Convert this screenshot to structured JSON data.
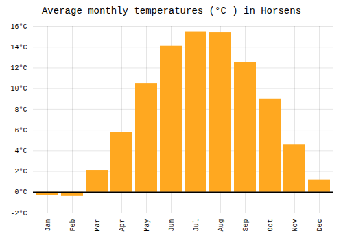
{
  "chart_data": {
    "type": "bar",
    "title": "Average monthly temperatures (°C ) in Horsens",
    "categories": [
      "Jan",
      "Feb",
      "Mar",
      "Apr",
      "May",
      "Jun",
      "Jul",
      "Aug",
      "Sep",
      "Oct",
      "Nov",
      "Dec"
    ],
    "values": [
      -0.3,
      -0.4,
      2.1,
      5.8,
      10.5,
      14.1,
      15.5,
      15.4,
      12.5,
      9.0,
      4.6,
      1.2
    ],
    "color": "#FFA820",
    "ylim": [
      -2,
      16
    ],
    "yticks": [
      {
        "value": -2,
        "label": "-2°C"
      },
      {
        "value": 0,
        "label": "0°C"
      },
      {
        "value": 2,
        "label": "2°C"
      },
      {
        "value": 4,
        "label": "4°C"
      },
      {
        "value": 6,
        "label": "6°C"
      },
      {
        "value": 8,
        "label": "8°C"
      },
      {
        "value": 10,
        "label": "10°C"
      },
      {
        "value": 12,
        "label": "12°C"
      },
      {
        "value": 14,
        "label": "14°C"
      },
      {
        "value": 16,
        "label": "16°C"
      }
    ],
    "grid": true
  }
}
